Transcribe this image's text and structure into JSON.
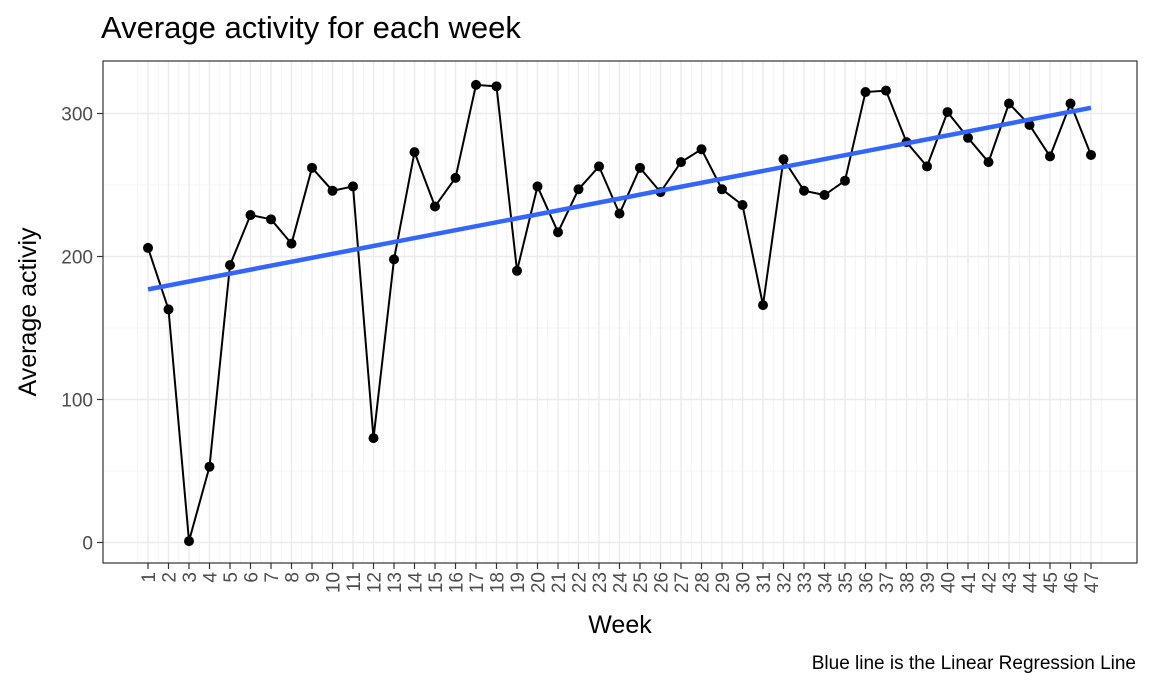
{
  "chart_data": {
    "type": "line",
    "title": "Average activity for each week",
    "xlabel": "Week",
    "ylabel": "Average activiy",
    "caption": "Blue line is the Linear Regression Line",
    "x": [
      1,
      2,
      3,
      4,
      5,
      6,
      7,
      8,
      9,
      10,
      11,
      12,
      13,
      14,
      15,
      16,
      17,
      18,
      19,
      20,
      21,
      22,
      23,
      24,
      25,
      26,
      27,
      28,
      29,
      30,
      31,
      32,
      33,
      34,
      35,
      36,
      37,
      38,
      39,
      40,
      41,
      42,
      43,
      44,
      45,
      46,
      47
    ],
    "x_tick_labels": [
      "1",
      "2",
      "3",
      "4",
      "5",
      "6",
      "7",
      "8",
      "9",
      "10",
      "11",
      "12",
      "13",
      "14",
      "15",
      "16",
      "17",
      "18",
      "19",
      "20",
      "21",
      "22",
      "23",
      "24",
      "25",
      "26",
      "27",
      "28",
      "29",
      "30",
      "31",
      "32",
      "33",
      "34",
      "35",
      "36",
      "37",
      "38",
      "39",
      "40",
      "41",
      "42",
      "43",
      "44",
      "45",
      "46",
      "47"
    ],
    "series": [
      {
        "values": [
          206,
          163,
          1,
          53,
          194,
          229,
          226,
          209,
          262,
          246,
          249,
          73,
          198,
          273,
          235,
          255,
          320,
          319,
          190,
          249,
          217,
          247,
          263,
          230,
          262,
          245,
          266,
          275,
          247,
          236,
          166,
          268,
          246,
          243,
          253,
          315,
          316,
          280,
          263,
          301,
          283,
          266,
          307,
          292,
          270,
          307,
          271
        ],
        "color": "#000000"
      }
    ],
    "regression_line": {
      "start": [
        1,
        177
      ],
      "end": [
        47,
        304
      ],
      "color": "#3366ff"
    },
    "y_ticks": [
      0,
      100,
      200,
      300
    ],
    "y_tick_labels": [
      "0",
      "100",
      "200",
      "300"
    ],
    "ylim": [
      -14,
      336
    ],
    "xlim": [
      0.25,
      47.75
    ],
    "grid": true,
    "panel_border": true
  }
}
